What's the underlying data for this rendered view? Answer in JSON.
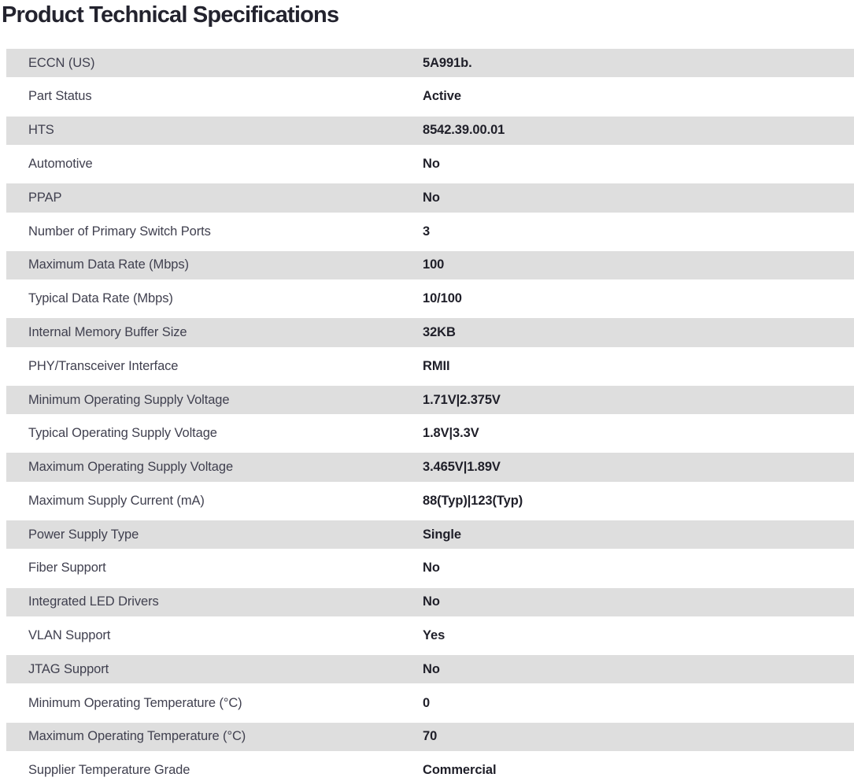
{
  "page": {
    "title": "Product Technical Specifications"
  },
  "colors": {
    "title_color": "#23232e",
    "label_color": "#40404f",
    "value_color": "#1f1f29",
    "row_alt_color": "#dedede",
    "row_base_color": "#ffffff"
  },
  "table": {
    "rows": [
      {
        "label": "ECCN (US)",
        "value": "5A991b."
      },
      {
        "label": "Part Status",
        "value": "Active"
      },
      {
        "label": "HTS",
        "value": "8542.39.00.01"
      },
      {
        "label": "Automotive",
        "value": "No"
      },
      {
        "label": "PPAP",
        "value": "No"
      },
      {
        "label": "Number of Primary Switch Ports",
        "value": "3"
      },
      {
        "label": "Maximum Data Rate (Mbps)",
        "value": "100"
      },
      {
        "label": "Typical Data Rate (Mbps)",
        "value": "10/100"
      },
      {
        "label": "Internal Memory Buffer Size",
        "value": "32KB"
      },
      {
        "label": "PHY/Transceiver Interface",
        "value": "RMII"
      },
      {
        "label": "Minimum Operating Supply Voltage",
        "value": "1.71V|2.375V"
      },
      {
        "label": "Typical Operating Supply Voltage",
        "value": "1.8V|3.3V"
      },
      {
        "label": "Maximum Operating Supply Voltage",
        "value": "3.465V|1.89V"
      },
      {
        "label": "Maximum Supply Current (mA)",
        "value": "88(Typ)|123(Typ)"
      },
      {
        "label": "Power Supply Type",
        "value": "Single"
      },
      {
        "label": "Fiber Support",
        "value": "No"
      },
      {
        "label": "Integrated LED Drivers",
        "value": "No"
      },
      {
        "label": "VLAN Support",
        "value": "Yes"
      },
      {
        "label": "JTAG Support",
        "value": "No"
      },
      {
        "label": "Minimum Operating Temperature (°C)",
        "value": "0"
      },
      {
        "label": "Maximum Operating Temperature (°C)",
        "value": "70"
      },
      {
        "label": "Supplier Temperature Grade",
        "value": "Commercial"
      }
    ]
  }
}
